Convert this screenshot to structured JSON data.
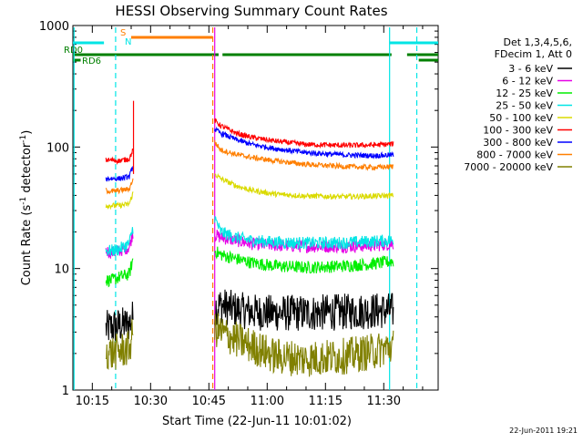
{
  "chart_data": {
    "type": "line",
    "title": "HESSI Observing Summary Count Rates",
    "xlabel": "Start Time (22-Jun-11 10:01:02)",
    "ylabel": "Count Rate (s⁻¹ detector⁻¹)",
    "ylabel_parts": {
      "a": "Count Rate (s",
      "sup1": "-1",
      "b": " detector",
      "sup2": "-1",
      "c": ")"
    },
    "y_scale": "log",
    "xlim_minutes": [
      10.0,
      104.0
    ],
    "ylim": [
      1,
      1000
    ],
    "x_tick_labels": [
      "10:15",
      "10:30",
      "10:45",
      "11:00",
      "11:15",
      "11:30"
    ],
    "x_tick_minutes": [
      15,
      30,
      45,
      60,
      75,
      90
    ],
    "y_tick_labels": [
      "1",
      "10",
      "100",
      "1000"
    ],
    "y_tick_values": [
      1,
      10,
      100,
      1000
    ],
    "legend_header": [
      "Det 1,3,4,5,6,",
      "FDecim 1, Att 0"
    ],
    "legend_position": "right",
    "timestamp": "22-Jun-2011 19:21",
    "data_segments": [
      {
        "start": 18.5,
        "end": 25.5
      },
      {
        "start": 46.5,
        "end": 92.5
      }
    ],
    "series": [
      {
        "name": "3 - 6 keV",
        "color": "#000000",
        "points": [
          [
            18.5,
            3.2
          ],
          [
            20,
            3.3
          ],
          [
            22,
            3.4
          ],
          [
            24.5,
            3.5
          ],
          [
            25.5,
            4
          ],
          [
            46.5,
            4.8
          ],
          [
            48,
            5
          ],
          [
            52,
            4.6
          ],
          [
            56,
            4.4
          ],
          [
            62,
            4.3
          ],
          [
            70,
            4.3
          ],
          [
            80,
            4.4
          ],
          [
            88,
            4.5
          ],
          [
            92.5,
            4.5
          ]
        ]
      },
      {
        "name": "6 - 12 keV",
        "color": "#e600e6",
        "points": [
          [
            18.5,
            14
          ],
          [
            20,
            13.5
          ],
          [
            22,
            14
          ],
          [
            24.5,
            15
          ],
          [
            25.5,
            20
          ],
          [
            46.5,
            19
          ],
          [
            48,
            18
          ],
          [
            52,
            17
          ],
          [
            56,
            16
          ],
          [
            62,
            15.5
          ],
          [
            70,
            15.2
          ],
          [
            80,
            15.2
          ],
          [
            88,
            15.5
          ],
          [
            92.5,
            16
          ]
        ]
      },
      {
        "name": "12 - 25 keV",
        "color": "#00ee00",
        "points": [
          [
            18.5,
            8
          ],
          [
            20,
            8
          ],
          [
            22,
            8.5
          ],
          [
            24.5,
            9
          ],
          [
            25.5,
            12
          ],
          [
            46.5,
            14
          ],
          [
            48,
            13
          ],
          [
            52,
            12
          ],
          [
            56,
            11.2
          ],
          [
            62,
            10.5
          ],
          [
            70,
            10.2
          ],
          [
            80,
            10.5
          ],
          [
            88,
            11
          ],
          [
            92.5,
            11.5
          ]
        ]
      },
      {
        "name": "25 - 50 keV",
        "color": "#00e5e5",
        "points": [
          [
            18.5,
            14
          ],
          [
            20,
            14
          ],
          [
            22,
            14.5
          ],
          [
            24.5,
            16
          ],
          [
            25.5,
            22
          ],
          [
            46.5,
            26
          ],
          [
            48,
            20
          ],
          [
            52,
            18
          ],
          [
            56,
            17
          ],
          [
            62,
            16.5
          ],
          [
            70,
            16.2
          ],
          [
            80,
            16.3
          ],
          [
            88,
            16.8
          ],
          [
            92.5,
            17
          ]
        ]
      },
      {
        "name": "50 - 100 keV",
        "color": "#dada00",
        "points": [
          [
            18.5,
            33
          ],
          [
            20,
            33
          ],
          [
            22,
            33
          ],
          [
            24.5,
            34
          ],
          [
            25.5,
            42
          ],
          [
            46.5,
            60
          ],
          [
            48,
            55
          ],
          [
            52,
            48
          ],
          [
            56,
            44
          ],
          [
            62,
            41
          ],
          [
            70,
            39.5
          ],
          [
            80,
            39
          ],
          [
            88,
            39.5
          ],
          [
            92.5,
            40
          ]
        ]
      },
      {
        "name": "100 - 300 keV",
        "color": "#ff0000",
        "points": [
          [
            18.5,
            78
          ],
          [
            20,
            78
          ],
          [
            22,
            77
          ],
          [
            24.5,
            80
          ],
          [
            25.5,
            95
          ],
          [
            46.5,
            165
          ],
          [
            48,
            150
          ],
          [
            52,
            130
          ],
          [
            56,
            120
          ],
          [
            62,
            112
          ],
          [
            70,
            105
          ],
          [
            80,
            103
          ],
          [
            88,
            104
          ],
          [
            92.5,
            106
          ]
        ]
      },
      {
        "name": "300 - 800 keV",
        "color": "#0000ff",
        "points": [
          [
            18.5,
            55
          ],
          [
            20,
            55
          ],
          [
            22,
            55
          ],
          [
            24.5,
            57
          ],
          [
            25.5,
            70
          ],
          [
            46.5,
            140
          ],
          [
            48,
            130
          ],
          [
            52,
            115
          ],
          [
            56,
            105
          ],
          [
            62,
            97
          ],
          [
            70,
            90
          ],
          [
            80,
            86
          ],
          [
            88,
            85
          ],
          [
            92.5,
            86
          ]
        ]
      },
      {
        "name": "800 - 7000 keV",
        "color": "#ff7f00",
        "points": [
          [
            18.5,
            44
          ],
          [
            20,
            43
          ],
          [
            22,
            44
          ],
          [
            24.5,
            45
          ],
          [
            25.5,
            55
          ],
          [
            46.5,
            110
          ],
          [
            48,
            95
          ],
          [
            52,
            87
          ],
          [
            56,
            82
          ],
          [
            62,
            77
          ],
          [
            70,
            72
          ],
          [
            80,
            69
          ],
          [
            88,
            68
          ],
          [
            92.5,
            69
          ]
        ]
      },
      {
        "name": "7000 - 20000 keV",
        "color": "#808000",
        "points": [
          [
            18.5,
            2.1
          ],
          [
            20,
            2.0
          ],
          [
            22,
            2.1
          ],
          [
            24.5,
            2.2
          ],
          [
            25.5,
            3
          ],
          [
            46.5,
            3.2
          ],
          [
            48,
            3.0
          ],
          [
            52,
            2.6
          ],
          [
            56,
            2.3
          ],
          [
            62,
            1.9
          ],
          [
            70,
            1.8
          ],
          [
            80,
            1.9
          ],
          [
            88,
            2.1
          ],
          [
            92.5,
            2.3
          ]
        ]
      }
    ],
    "flags": [
      {
        "label": "RD0",
        "color": "#008000",
        "level": "upper",
        "intervals": [
          [
            10.0,
            47.5
          ],
          [
            48.5,
            92.0
          ],
          [
            96.0,
            104.0
          ]
        ]
      },
      {
        "label": "RD6",
        "color": "#008000",
        "level": "lower",
        "intervals": [
          [
            10.0,
            12.0
          ],
          [
            99.0,
            104.0
          ]
        ]
      }
    ],
    "saa_bars": [
      {
        "color": "#00e5e5",
        "intervals": [
          [
            10.0,
            18.0
          ],
          [
            91.5,
            104.0
          ]
        ]
      }
    ],
    "flare_bar": {
      "labels": [
        "S",
        "N"
      ],
      "color": "#ff7f00",
      "interval": [
        25.0,
        46.0
      ]
    },
    "vertical_lines": [
      {
        "minute": 21.0,
        "color": "#00e5e5",
        "style": "dashed"
      },
      {
        "minute": 46.0,
        "color": "#ff7f00",
        "style": "dashed"
      },
      {
        "minute": 46.5,
        "color": "#e600e6",
        "style": "solid"
      },
      {
        "minute": 91.5,
        "color": "#00e5e5",
        "style": "solid"
      },
      {
        "minute": 98.5,
        "color": "#00e5e5",
        "style": "dashed"
      }
    ],
    "vertical_lines_left_saa": [
      {
        "minute": 10.3,
        "color": "#00e5e5",
        "style": "solid"
      }
    ]
  }
}
